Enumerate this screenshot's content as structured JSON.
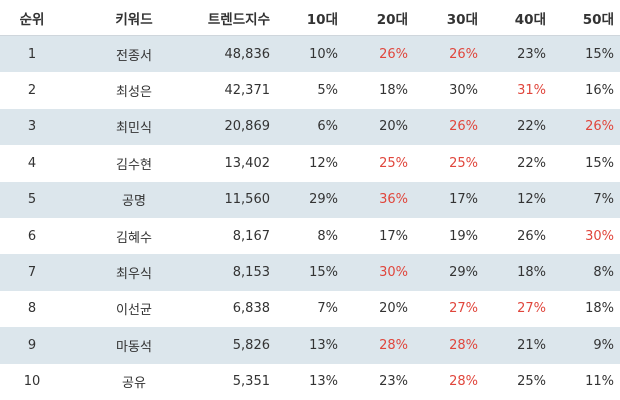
{
  "headers": [
    "순위",
    "키워드",
    "트렌드지수",
    "10대",
    "20대",
    "30대",
    "40대",
    "50대"
  ],
  "highlight_color": "#e0463c",
  "rows": [
    {
      "rank": "1",
      "keyword": "전종서",
      "trend": "48,836",
      "ages": [
        "10%",
        "26%",
        "26%",
        "23%",
        "15%"
      ],
      "highlight": [
        false,
        true,
        true,
        false,
        false
      ]
    },
    {
      "rank": "2",
      "keyword": "최성은",
      "trend": "42,371",
      "ages": [
        "5%",
        "18%",
        "30%",
        "31%",
        "16%"
      ],
      "highlight": [
        false,
        false,
        false,
        true,
        false
      ]
    },
    {
      "rank": "3",
      "keyword": "최민식",
      "trend": "20,869",
      "ages": [
        "6%",
        "20%",
        "26%",
        "22%",
        "26%"
      ],
      "highlight": [
        false,
        false,
        true,
        false,
        true
      ]
    },
    {
      "rank": "4",
      "keyword": "김수현",
      "trend": "13,402",
      "ages": [
        "12%",
        "25%",
        "25%",
        "22%",
        "15%"
      ],
      "highlight": [
        false,
        true,
        true,
        false,
        false
      ]
    },
    {
      "rank": "5",
      "keyword": "공명",
      "trend": "11,560",
      "ages": [
        "29%",
        "36%",
        "17%",
        "12%",
        "7%"
      ],
      "highlight": [
        false,
        true,
        false,
        false,
        false
      ]
    },
    {
      "rank": "6",
      "keyword": "김혜수",
      "trend": "8,167",
      "ages": [
        "8%",
        "17%",
        "19%",
        "26%",
        "30%"
      ],
      "highlight": [
        false,
        false,
        false,
        false,
        true
      ]
    },
    {
      "rank": "7",
      "keyword": "최우식",
      "trend": "8,153",
      "ages": [
        "15%",
        "30%",
        "29%",
        "18%",
        "8%"
      ],
      "highlight": [
        false,
        true,
        false,
        false,
        false
      ]
    },
    {
      "rank": "8",
      "keyword": "이선균",
      "trend": "6,838",
      "ages": [
        "7%",
        "20%",
        "27%",
        "27%",
        "18%"
      ],
      "highlight": [
        false,
        false,
        true,
        true,
        false
      ]
    },
    {
      "rank": "9",
      "keyword": "마동석",
      "trend": "5,826",
      "ages": [
        "13%",
        "28%",
        "28%",
        "21%",
        "9%"
      ],
      "highlight": [
        false,
        true,
        true,
        false,
        false
      ]
    },
    {
      "rank": "10",
      "keyword": "공유",
      "trend": "5,351",
      "ages": [
        "13%",
        "23%",
        "28%",
        "25%",
        "11%"
      ],
      "highlight": [
        false,
        false,
        true,
        false,
        false
      ]
    }
  ]
}
